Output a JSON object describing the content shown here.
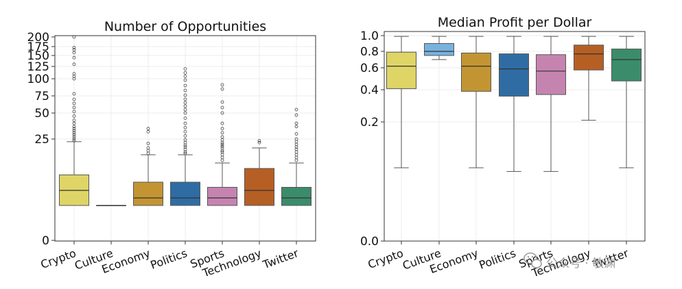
{
  "chart_data": [
    {
      "type": "box",
      "title": "Number of Opportunities",
      "y_scale": "symlog",
      "ylim": [
        0,
        200
      ],
      "yticks": [
        0,
        25,
        50,
        75,
        100,
        125,
        150,
        175,
        200
      ],
      "ytick_labels": [
        "0",
        "25",
        "50",
        "75",
        "100",
        "125",
        "150",
        "175",
        "200"
      ],
      "categories": [
        "Crypto",
        "Culture",
        "Economy",
        "Politics",
        "Sports",
        "Technology",
        "Twitter"
      ],
      "colors": [
        "#dfd566",
        "#78b2de",
        "#c39532",
        "#2f6ca3",
        "#c584b0",
        "#b65f24",
        "#3b8c6b"
      ],
      "boxes": [
        {
          "q1": 1.0,
          "median": 2.0,
          "q3": 3.9,
          "whisker_low": 1.0,
          "whisker_high": 22,
          "fliers": [
            23,
            25,
            27,
            29,
            31,
            33,
            35,
            37,
            40,
            43,
            47,
            52,
            58,
            64,
            70,
            78,
            100,
            105,
            110,
            130,
            145,
            158,
            166,
            172,
            200
          ]
        },
        {
          "q1": 1.0,
          "median": 1.0,
          "q3": 1.0,
          "whisker_low": 1.0,
          "whisker_high": 1.0,
          "fliers": []
        },
        {
          "q1": 1.0,
          "median": 1.5,
          "q3": 2.8,
          "whisker_low": 1.0,
          "whisker_high": 10,
          "fliers": [
            11,
            13,
            15,
            20,
            32,
            35
          ]
        },
        {
          "q1": 1.0,
          "median": 1.5,
          "q3": 2.8,
          "whisker_low": 1.0,
          "whisker_high": 10,
          "fliers": [
            11,
            12,
            14,
            16,
            18,
            21,
            24,
            28,
            32,
            36,
            40,
            45,
            50,
            55,
            60,
            65,
            70,
            76,
            83,
            90,
            98,
            105,
            112,
            120
          ]
        },
        {
          "q1": 1.0,
          "median": 1.5,
          "q3": 2.3,
          "whisker_low": 1.0,
          "whisker_high": 7,
          "fliers": [
            8,
            9,
            10,
            12,
            13,
            15,
            17,
            19,
            21,
            24,
            27,
            31,
            35,
            40,
            50,
            58,
            66,
            85,
            91
          ]
        },
        {
          "q1": 1.0,
          "median": 2.0,
          "q3": 5.0,
          "whisker_low": 1.0,
          "whisker_high": 15,
          "fliers": [
            21,
            23
          ]
        },
        {
          "q1": 1.0,
          "median": 1.5,
          "q3": 2.3,
          "whisker_low": 1.0,
          "whisker_high": 7,
          "fliers": [
            8,
            9,
            10,
            12,
            14,
            16,
            19,
            22,
            25,
            30,
            37,
            40,
            48,
            55
          ]
        }
      ]
    },
    {
      "type": "box",
      "title": "Median Profit per Dollar",
      "y_scale": "nonlinear",
      "ylim": [
        0.0,
        1.0
      ],
      "yticks": [
        0.0,
        0.2,
        0.4,
        0.6,
        0.8,
        1.0
      ],
      "ytick_labels": [
        "0.0",
        "0.2",
        "0.4",
        "0.6",
        "0.8",
        "1.0"
      ],
      "categories": [
        "Crypto",
        "Culture",
        "Economy",
        "Politics",
        "Sports",
        "Technology",
        "Twitter"
      ],
      "colors": [
        "#dfd566",
        "#78b2de",
        "#c39532",
        "#2f6ca3",
        "#c584b0",
        "#b65f24",
        "#3b8c6b"
      ],
      "boxes": [
        {
          "q1": 0.41,
          "median": 0.62,
          "q3": 0.79,
          "whisker_low": 0.1,
          "whisker_high": 0.99
        },
        {
          "q1": 0.75,
          "median": 0.8,
          "q3": 0.9,
          "whisker_low": 0.7,
          "whisker_high": 0.99
        },
        {
          "q1": 0.39,
          "median": 0.62,
          "q3": 0.78,
          "whisker_low": 0.1,
          "whisker_high": 0.99
        },
        {
          "q1": 0.36,
          "median": 0.59,
          "q3": 0.77,
          "whisker_low": 0.095,
          "whisker_high": 0.99
        },
        {
          "q1": 0.37,
          "median": 0.57,
          "q3": 0.76,
          "whisker_low": 0.095,
          "whisker_high": 0.99
        },
        {
          "q1": 0.58,
          "median": 0.77,
          "q3": 0.88,
          "whisker_low": 0.21,
          "whisker_high": 0.99
        },
        {
          "q1": 0.48,
          "median": 0.7,
          "q3": 0.83,
          "whisker_low": 0.1,
          "whisker_high": 0.99
        }
      ]
    }
  ],
  "watermark": {
    "text": "公众号 · 敏渊"
  }
}
